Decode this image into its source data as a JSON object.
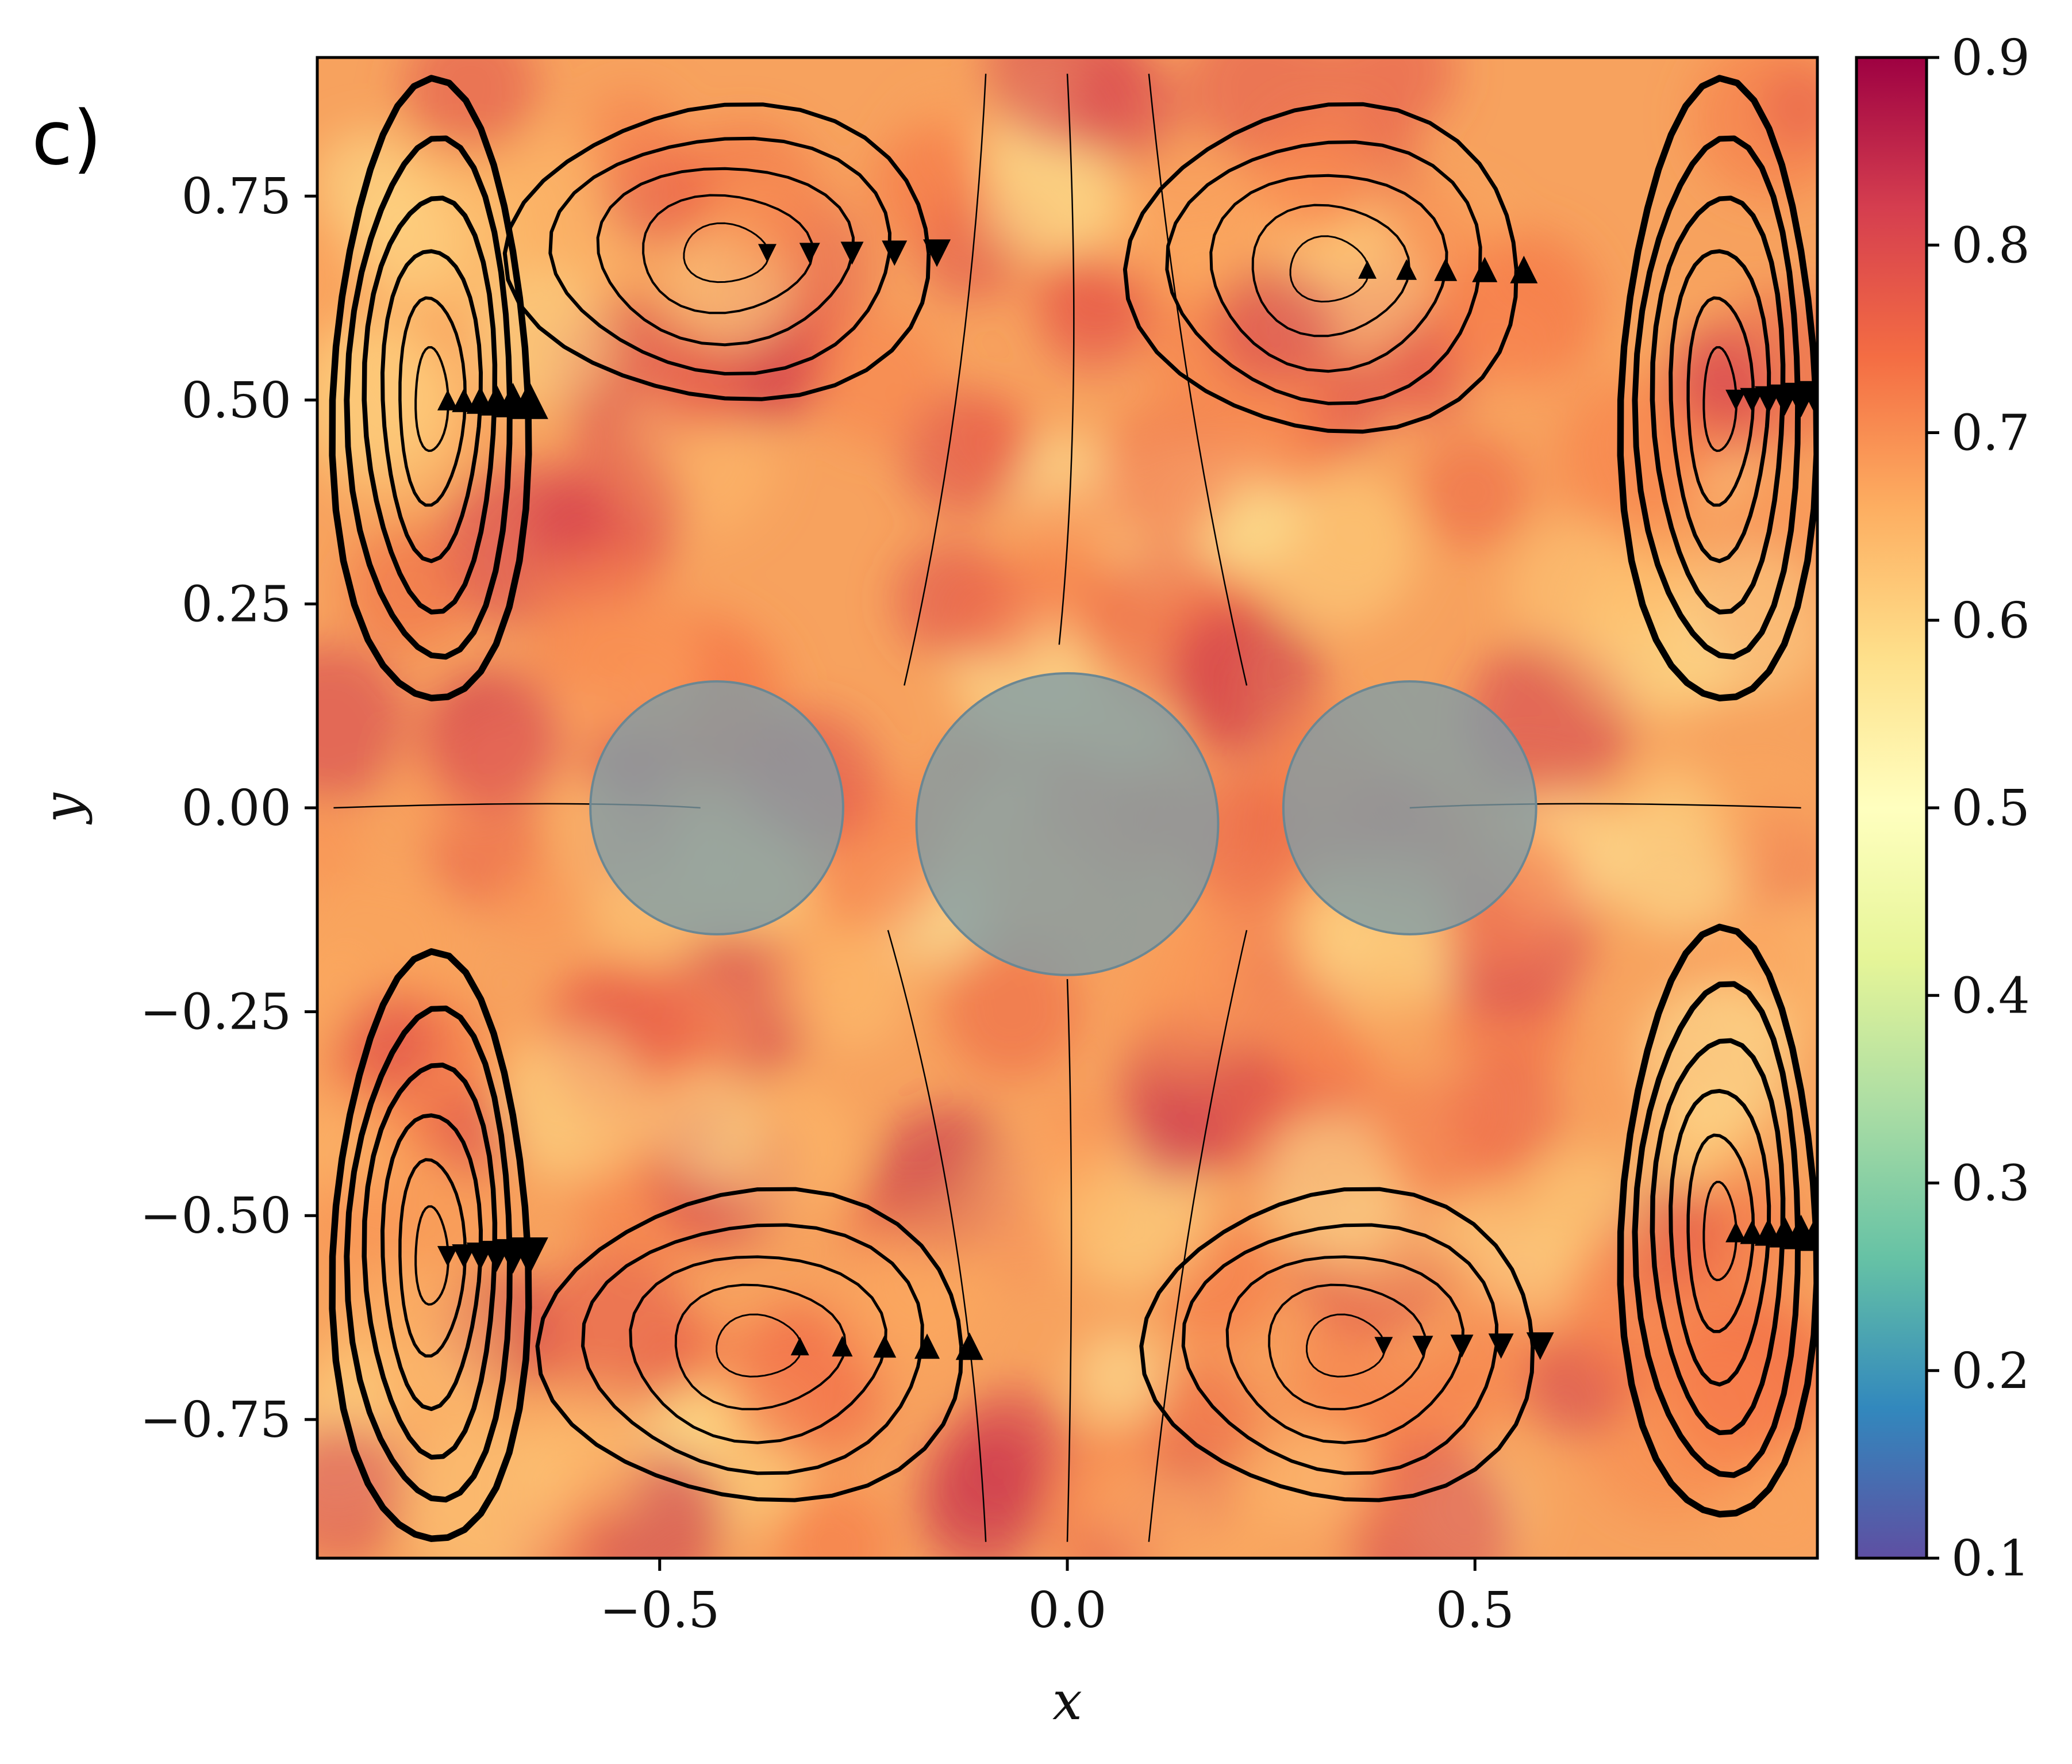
{
  "panel_label": "c)",
  "chart_data": {
    "type": "heatmap",
    "subtype": "streamplot-over-heatmap",
    "title": "",
    "xlabel": "x",
    "ylabel": "y",
    "xlim": [
      -0.92,
      0.92
    ],
    "ylim": [
      -0.92,
      0.92
    ],
    "grid": false,
    "x_ticks": [
      -0.5,
      0.0,
      0.5
    ],
    "x_tick_labels": [
      "−0.5",
      "0.0",
      "0.5"
    ],
    "y_ticks": [
      0.75,
      0.5,
      0.25,
      0.0,
      -0.25,
      -0.5,
      -0.75
    ],
    "y_tick_labels": [
      "0.75",
      "0.50",
      "0.25",
      "0.00",
      "−0.25",
      "−0.50",
      "−0.75"
    ],
    "colorbar": {
      "colormap": "Spectral_r",
      "range": [
        0.1,
        0.9
      ],
      "ticks": [
        0.9,
        0.8,
        0.7,
        0.6,
        0.5,
        0.4,
        0.3,
        0.2,
        0.1
      ],
      "tick_labels": [
        "0.9",
        "0.8",
        "0.7",
        "0.6",
        "0.5",
        "0.4",
        "0.3",
        "0.2",
        "0.1"
      ],
      "stops": [
        "#5e4fa2",
        "#3288bd",
        "#66c2a5",
        "#abdda4",
        "#e6f598",
        "#ffffbf",
        "#fee08b",
        "#fdae61",
        "#f46d43",
        "#d53e4f",
        "#9e0142"
      ]
    },
    "field_value_range": [
      0.55,
      0.85
    ],
    "field_background_color": "#f7a25e",
    "obstacles": [
      {
        "cx": -0.43,
        "cy": 0.0,
        "r": 0.155
      },
      {
        "cx": 0.0,
        "cy": -0.02,
        "r": 0.185
      },
      {
        "cx": 0.42,
        "cy": 0.0,
        "r": 0.155
      }
    ],
    "obstacle_color": "#7f9ea8",
    "vortices": [
      {
        "cx": -0.78,
        "cy": 0.5,
        "rx": 0.12,
        "ry": 0.38,
        "direction": "counterclockwise",
        "strength": "strong"
      },
      {
        "cx": -0.42,
        "cy": 0.68,
        "rx": 0.26,
        "ry": 0.18,
        "direction": "clockwise",
        "strength": "moderate"
      },
      {
        "cx": 0.32,
        "cy": 0.66,
        "rx": 0.24,
        "ry": 0.2,
        "direction": "counterclockwise",
        "strength": "moderate"
      },
      {
        "cx": 0.8,
        "cy": 0.5,
        "rx": 0.12,
        "ry": 0.38,
        "direction": "clockwise",
        "strength": "strong"
      },
      {
        "cx": -0.78,
        "cy": -0.55,
        "rx": 0.12,
        "ry": 0.36,
        "direction": "clockwise",
        "strength": "strong"
      },
      {
        "cx": -0.38,
        "cy": -0.66,
        "rx": 0.26,
        "ry": 0.19,
        "direction": "counterclockwise",
        "strength": "moderate"
      },
      {
        "cx": 0.34,
        "cy": -0.66,
        "rx": 0.24,
        "ry": 0.19,
        "direction": "clockwise",
        "strength": "moderate"
      },
      {
        "cx": 0.8,
        "cy": -0.52,
        "rx": 0.12,
        "ry": 0.36,
        "direction": "counterclockwise",
        "strength": "strong"
      }
    ]
  }
}
